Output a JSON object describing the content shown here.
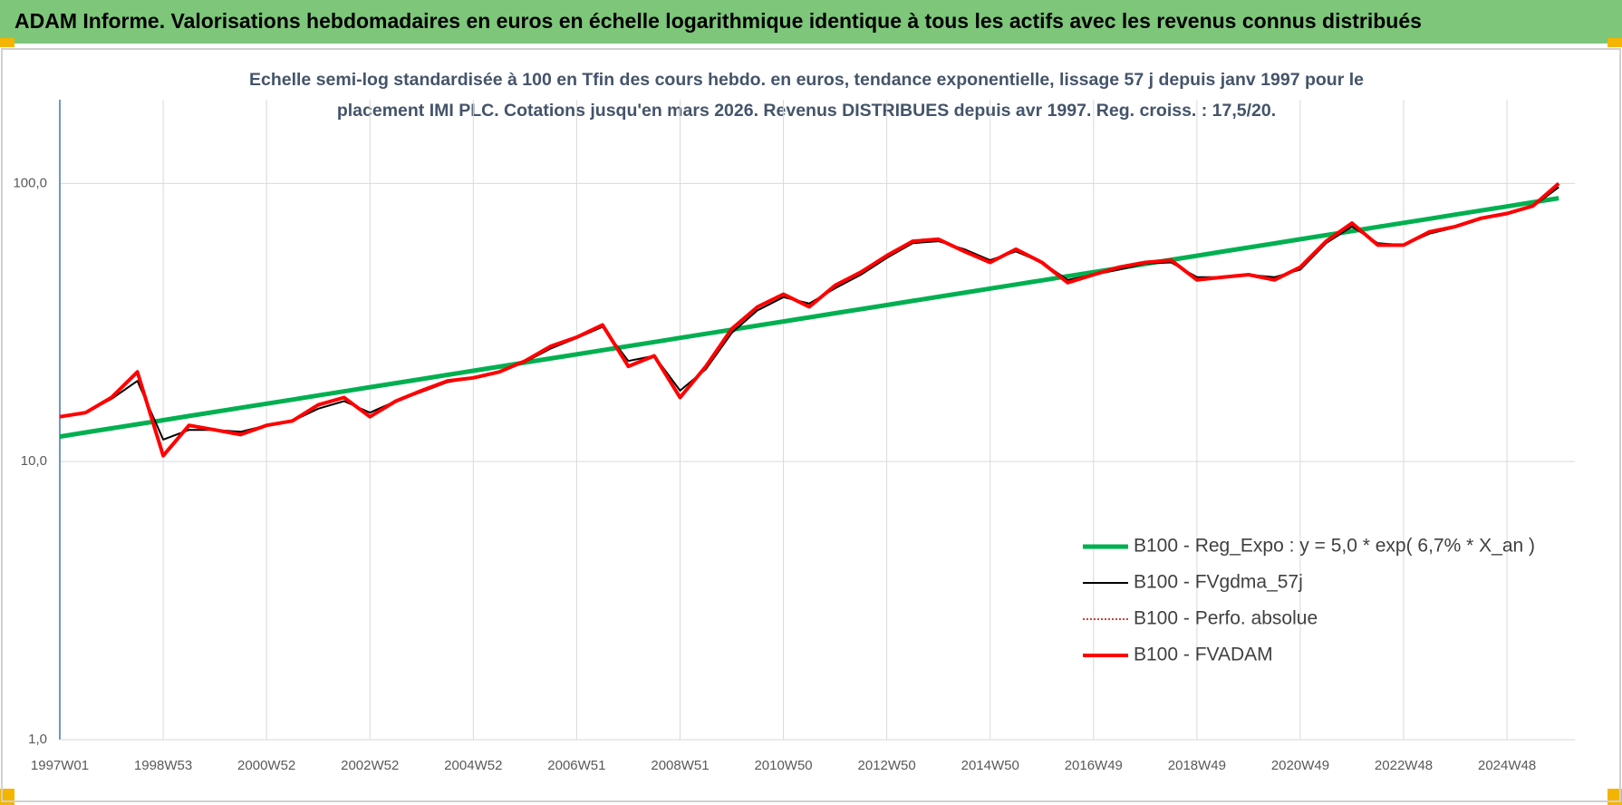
{
  "header": {
    "title": "ADAM Informe. Valorisations hebdomadaires en euros en échelle logarithmique identique à tous les actifs avec les revenus connus distribués"
  },
  "chart_data": {
    "type": "line",
    "subtitle": [
      "Echelle semi-log standardisée à 100 en Tfin des cours hebdo. en euros, tendance exponentielle, lissage 57 j depuis janv 1997 pour le",
      "placement IMI PLC. Cotations jusqu'en mars 2026. Revenus DISTRIBUES depuis avr 1997. Reg. croiss. : 17,5/20."
    ],
    "log_scale": true,
    "grid": true,
    "legend": "right",
    "categories": [
      "1997W01",
      null,
      null,
      null,
      "1998W53",
      null,
      null,
      null,
      "2000W52",
      null,
      null,
      null,
      "2002W52",
      null,
      null,
      null,
      "2004W52",
      null,
      null,
      null,
      "2006W51",
      null,
      null,
      null,
      "2008W51",
      null,
      null,
      null,
      "2010W50",
      null,
      null,
      null,
      "2012W50",
      null,
      null,
      null,
      "2014W50",
      null,
      null,
      null,
      "2016W49",
      null,
      null,
      null,
      "2018W49",
      null,
      null,
      null,
      "2020W49",
      null,
      null,
      null,
      "2022W48",
      null,
      null,
      null,
      "2024W48",
      null,
      null
    ],
    "ylim": [
      1,
      200
    ],
    "yticks": [
      {
        "value": 1,
        "label": "1,0"
      },
      {
        "value": 10,
        "label": "10,0"
      },
      {
        "value": 100,
        "label": "100,0"
      }
    ],
    "series": [
      {
        "name": "B100 - Reg_Expo : y = 5,0 * exp( 6,7% *  X_an )",
        "color": "#00b050",
        "width": 5,
        "dash": false,
        "values": [
          12.3,
          12.73,
          13.17,
          13.62,
          14.09,
          14.58,
          15.09,
          15.61,
          16.15,
          16.71,
          17.29,
          17.89,
          18.51,
          19.15,
          19.81,
          20.5,
          21.21,
          21.94,
          22.7,
          23.49,
          24.3,
          25.14,
          26.01,
          26.91,
          27.84,
          28.81,
          29.8,
          30.84,
          31.9,
          33.0,
          34.15,
          35.33,
          36.55,
          37.82,
          39.13,
          40.48,
          41.88,
          43.33,
          44.83,
          46.38,
          47.99,
          49.65,
          51.37,
          53.14,
          54.98,
          56.89,
          58.85,
          60.89,
          63.0,
          65.18,
          67.43,
          69.77,
          72.18,
          74.68,
          77.26,
          79.93,
          82.7,
          85.56,
          88.52
        ]
      },
      {
        "name": "B100 - FVgdma_57j",
        "color": "#000000",
        "width": 2,
        "dash": false,
        "values": [
          14.5,
          15,
          16.8,
          19.5,
          12,
          13,
          13,
          12.8,
          13.5,
          14,
          15.5,
          16.5,
          15,
          16.5,
          17.8,
          19.3,
          20,
          21,
          22.8,
          25.5,
          27.8,
          30.5,
          23,
          24,
          18,
          21.5,
          29,
          35,
          39,
          37,
          42,
          47,
          54,
          61,
          62,
          58,
          53,
          57,
          52,
          45,
          47,
          49,
          51.5,
          52,
          46,
          46,
          47,
          46,
          49,
          61,
          70,
          61,
          60,
          66,
          69.5,
          74.5,
          77.5,
          82.5,
          97
        ]
      },
      {
        "name": "B100 - Perfo. absolue",
        "color": "#c00000",
        "width": 1.5,
        "dash": true,
        "values": [
          14.5,
          15,
          17,
          21,
          10.5,
          13.5,
          13,
          12.5,
          13.5,
          14,
          16,
          17,
          14.5,
          16.5,
          18,
          19.5,
          20,
          21,
          23,
          26,
          28,
          31,
          22,
          24,
          17,
          22,
          30,
          36,
          40,
          36,
          43,
          48,
          55,
          62,
          63,
          57,
          52,
          58,
          52,
          44,
          47,
          50,
          52,
          53,
          45,
          46,
          47,
          45,
          50,
          62,
          72,
          60,
          60,
          67,
          70,
          75,
          78,
          83,
          100
        ]
      },
      {
        "name": "B100 - FVADAM",
        "color": "#ff0000",
        "width": 4,
        "dash": false,
        "values": [
          14.5,
          15,
          17,
          21,
          10.5,
          13.5,
          13,
          12.5,
          13.5,
          14,
          16,
          17,
          14.5,
          16.5,
          18,
          19.5,
          20,
          21,
          23,
          26,
          28,
          31,
          22,
          24,
          17,
          22,
          30,
          36,
          40,
          36,
          43,
          48,
          55,
          62,
          63,
          57,
          52,
          58,
          52,
          44,
          47,
          50,
          52,
          53,
          45,
          46,
          47,
          45,
          50,
          62,
          72,
          60,
          60,
          67,
          70,
          75,
          78,
          83,
          100
        ]
      }
    ]
  }
}
